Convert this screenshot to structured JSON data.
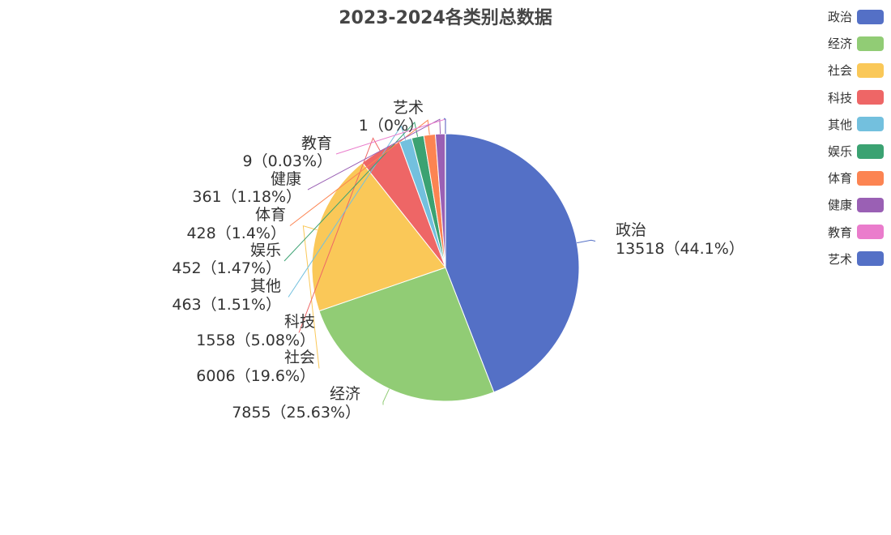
{
  "title": "2023-2024各类别总数据",
  "chart_data": {
    "type": "pie",
    "title": "2023-2024各类别总数据",
    "legend_position": "top-right",
    "slices": [
      {
        "name": "政治",
        "value": 13518,
        "percent_label": "44.1%",
        "color": "#5470c6"
      },
      {
        "name": "经济",
        "value": 7855,
        "percent_label": "25.63%",
        "color": "#91cc75"
      },
      {
        "name": "社会",
        "value": 6006,
        "percent_label": "19.6%",
        "color": "#fac858"
      },
      {
        "name": "科技",
        "value": 1558,
        "percent_label": "5.08%",
        "color": "#ee6666"
      },
      {
        "name": "其他",
        "value": 463,
        "percent_label": "1.51%",
        "color": "#73c0de"
      },
      {
        "name": "娱乐",
        "value": 452,
        "percent_label": "1.47%",
        "color": "#3ba272"
      },
      {
        "name": "体育",
        "value": 428,
        "percent_label": "1.4%",
        "color": "#fc8452"
      },
      {
        "name": "健康",
        "value": 361,
        "percent_label": "1.18%",
        "color": "#9a60b4"
      },
      {
        "name": "教育",
        "value": 9,
        "percent_label": "0.03%",
        "color": "#ea7ccc"
      },
      {
        "name": "艺术",
        "value": 1,
        "percent_label": "0%",
        "color": "#5470c6"
      }
    ]
  }
}
